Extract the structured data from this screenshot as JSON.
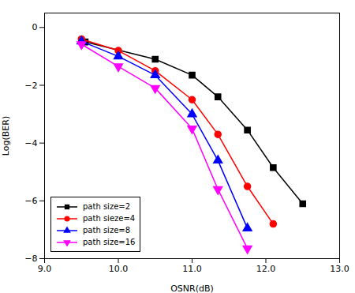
{
  "chart_data": {
    "type": "line",
    "xlabel": "OSNR(dB)",
    "ylabel": "Log(BER)",
    "xlim": [
      9,
      13
    ],
    "ylim": [
      -8,
      0.5
    ],
    "xticks": [
      9,
      10,
      11,
      12,
      13
    ],
    "yticks": [
      0,
      -2,
      -4,
      -6,
      -8
    ],
    "grid": false,
    "legend": "lower left",
    "series": [
      {
        "name": "path size=2",
        "color": "#000000",
        "marker": "square",
        "x": [
          9.55,
          10.5,
          11.0,
          11.35,
          11.75,
          12.1,
          12.5
        ],
        "values": [
          -0.5,
          -1.1,
          -1.65,
          -2.4,
          -3.55,
          -4.85,
          -6.1
        ]
      },
      {
        "name": "path sieze=4",
        "color": "#ff0000",
        "marker": "circle",
        "x": [
          9.5,
          10.0,
          10.5,
          11.0,
          11.35,
          11.75,
          12.1
        ],
        "values": [
          -0.4,
          -0.8,
          -1.5,
          -2.5,
          -3.7,
          -5.5,
          -6.8
        ]
      },
      {
        "name": "path size=8",
        "color": "#0000ff",
        "marker": "triangle-up",
        "x": [
          9.5,
          10.0,
          10.5,
          11.0,
          11.35,
          11.75
        ],
        "values": [
          -0.48,
          -1.0,
          -1.65,
          -3.0,
          -4.6,
          -6.95
        ]
      },
      {
        "name": "path size=16",
        "color": "#ff00ff",
        "marker": "triangle-down",
        "x": [
          9.5,
          10.0,
          10.5,
          11.0,
          11.35,
          11.75
        ],
        "values": [
          -0.58,
          -1.35,
          -2.1,
          -3.5,
          -5.6,
          -7.65
        ]
      }
    ]
  }
}
